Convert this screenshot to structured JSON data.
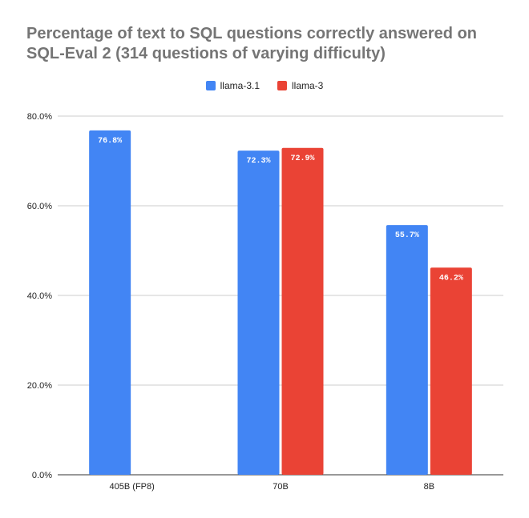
{
  "chart_data": {
    "type": "bar",
    "title": "Percentage of text to SQL questions correctly answered on SQL-Eval 2 (314 questions of varying difficulty)",
    "categories": [
      "405B (FP8)",
      "70B",
      "8B"
    ],
    "series": [
      {
        "name": "llama-3.1",
        "values": [
          76.8,
          72.3,
          55.7
        ],
        "labels": [
          "76.8%",
          "72.3%",
          "55.7%"
        ],
        "color": "#4285F4"
      },
      {
        "name": "llama-3",
        "values": [
          null,
          72.9,
          46.2
        ],
        "labels": [
          null,
          "72.9%",
          "46.2%"
        ],
        "color": "#EA4335"
      }
    ],
    "y_ticks": [
      0,
      20,
      40,
      60,
      80
    ],
    "y_tick_labels": [
      "0.0%",
      "20.0%",
      "40.0%",
      "60.0%",
      "80.0%"
    ],
    "ylim": [
      0,
      80
    ],
    "grid": true,
    "legend_position": "top-center"
  }
}
